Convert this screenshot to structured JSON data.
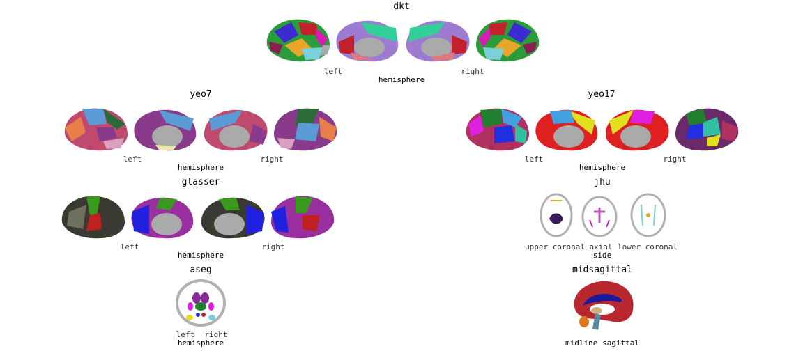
{
  "panels": {
    "dkt": {
      "title": "dkt",
      "left": "left",
      "right": "right",
      "axis": "hemisphere"
    },
    "yeo7": {
      "title": "yeo7",
      "left": "left",
      "right": "right",
      "axis": "hemisphere"
    },
    "yeo17": {
      "title": "yeo17",
      "left": "left",
      "right": "right",
      "axis": "hemisphere"
    },
    "glasser": {
      "title": "glasser",
      "left": "left",
      "right": "right",
      "axis": "hemisphere"
    },
    "jhu": {
      "title": "jhu",
      "views": [
        "upper coronal",
        "axial",
        "lower coronal"
      ],
      "axis": "side"
    },
    "aseg": {
      "title": "aseg",
      "left": "left",
      "right": "right",
      "axis": "hemisphere"
    },
    "midsagittal": {
      "title": "midsagittal",
      "view": "midline sagittal"
    }
  },
  "colors": {
    "dkt": [
      "#2a9d3a",
      "#d81bb2",
      "#3b2bd0",
      "#e8a52a",
      "#c2202a",
      "#7cd0d8",
      "#9c7bd0",
      "#30d098",
      "#8a2050",
      "#a04b2a"
    ],
    "yeo7": [
      "#d9a0c2",
      "#e87f4a",
      "#5b9bd5",
      "#c04a6e",
      "#2d6a3a",
      "#8a3a8a",
      "#e8e8a8"
    ],
    "yeo17": [
      "#e0e020",
      "#2030e0",
      "#e02020",
      "#30c0a0",
      "#6a2a6a",
      "#e020e0",
      "#208030",
      "#b03060",
      "#40a0e0"
    ],
    "glasser": [
      "#2a2a24",
      "#3a3a32",
      "#2020e0",
      "#3a9a20",
      "#c02020",
      "#9a30a0",
      "#707060"
    ],
    "midsagittal": [
      "#b8282e",
      "#1a1aa0",
      "#d0b080",
      "#e07820",
      "#5a8aa0"
    ]
  }
}
